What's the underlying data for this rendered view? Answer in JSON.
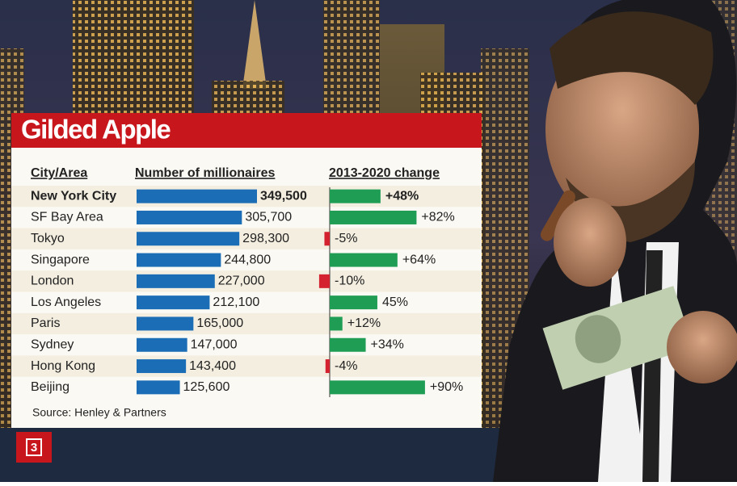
{
  "chart_data": {
    "type": "bar",
    "title": "Gilded Apple",
    "headers": [
      "City/Area",
      "Number of millionaires",
      "2013-2020 change"
    ],
    "categories": [
      "New York City",
      "SF Bay Area",
      "Tokyo",
      "Singapore",
      "London",
      "Los Angeles",
      "Paris",
      "Sydney",
      "Hong Kong",
      "Beijing"
    ],
    "series": [
      {
        "name": "Number of millionaires",
        "color": "#1b6db5",
        "values": [
          349500,
          305700,
          298300,
          244800,
          227000,
          212100,
          165000,
          147000,
          143400,
          125600
        ],
        "value_labels": [
          "349,500",
          "305,700",
          "298,300",
          "244,800",
          "227,000",
          "212,100",
          "165,000",
          "147,000",
          "143,400",
          "125,600"
        ]
      },
      {
        "name": "2013-2020 change",
        "color": "#1f9d55",
        "negative_color": "#d42230",
        "values": [
          48,
          82,
          -5,
          64,
          -10,
          45,
          12,
          34,
          -4,
          90
        ],
        "value_labels": [
          "+48%",
          "+82%",
          "-5%",
          "+64%",
          "-10%",
          "45%",
          "+12%",
          "+34%",
          "-4%",
          "+90%"
        ]
      }
    ],
    "source": "Source: Henley & Partners",
    "badge": "3"
  }
}
